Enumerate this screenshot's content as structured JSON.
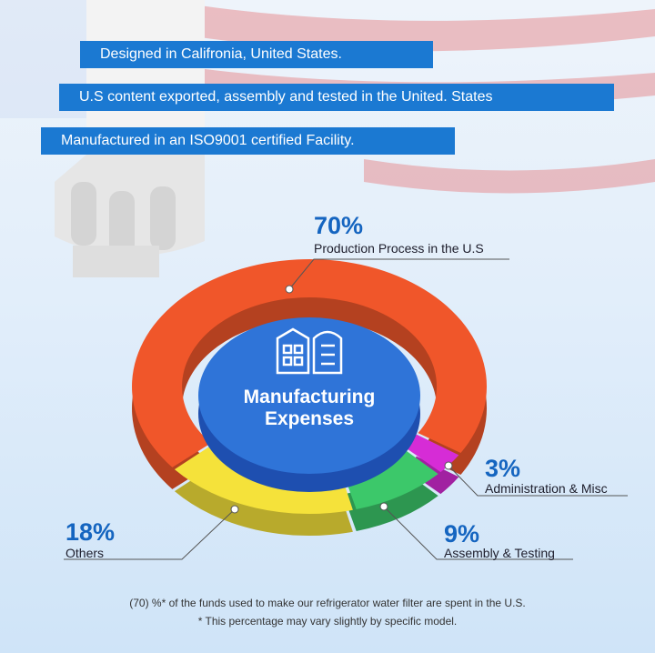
{
  "chart_data": {
    "type": "donut",
    "banners": [
      "Designed in Califronia, United States.",
      "U.S content exported, assembly and tested in the United. States",
      "Manufactured in an ISO9001 certified Facility."
    ],
    "center_label": "Manufacturing Expenses",
    "categories": [
      "Production Process in the U.S",
      "Administration & Misc",
      "Assembly & Testing",
      "Others"
    ],
    "values": [
      70,
      3,
      9,
      18
    ],
    "value_labels": [
      "70%",
      "3%",
      "9%",
      "18%"
    ],
    "colors": [
      "#f0562a",
      "#d62cd6",
      "#3cc86a",
      "#f5e23a"
    ],
    "footnotes": [
      "(70) %* of the funds used to make our refrigerator water filter are spent in the U.S.",
      "* This percentage may vary slightly by specific model."
    ]
  }
}
